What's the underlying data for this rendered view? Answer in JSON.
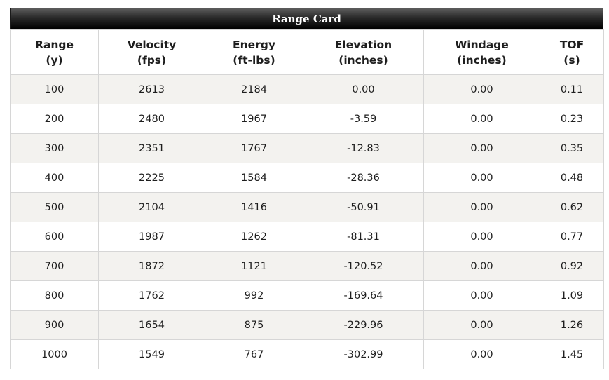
{
  "title": "Range Card",
  "columns": [
    {
      "name": "Range",
      "unit": "(y)"
    },
    {
      "name": "Velocity",
      "unit": "(fps)"
    },
    {
      "name": "Energy",
      "unit": "(ft-lbs)"
    },
    {
      "name": "Elevation",
      "unit": "(inches)"
    },
    {
      "name": "Windage",
      "unit": "(inches)"
    },
    {
      "name": "TOF",
      "unit": "(s)"
    }
  ],
  "rows": [
    [
      "100",
      "2613",
      "2184",
      "0.00",
      "0.00",
      "0.11"
    ],
    [
      "200",
      "2480",
      "1967",
      "-3.59",
      "0.00",
      "0.23"
    ],
    [
      "300",
      "2351",
      "1767",
      "-12.83",
      "0.00",
      "0.35"
    ],
    [
      "400",
      "2225",
      "1584",
      "-28.36",
      "0.00",
      "0.48"
    ],
    [
      "500",
      "2104",
      "1416",
      "-50.91",
      "0.00",
      "0.62"
    ],
    [
      "600",
      "1987",
      "1262",
      "-81.31",
      "0.00",
      "0.77"
    ],
    [
      "700",
      "1872",
      "1121",
      "-120.52",
      "0.00",
      "0.92"
    ],
    [
      "800",
      "1762",
      "992",
      "-169.64",
      "0.00",
      "1.09"
    ],
    [
      "900",
      "1654",
      "875",
      "-229.96",
      "0.00",
      "1.26"
    ],
    [
      "1000",
      "1549",
      "767",
      "-302.99",
      "0.00",
      "1.45"
    ]
  ]
}
